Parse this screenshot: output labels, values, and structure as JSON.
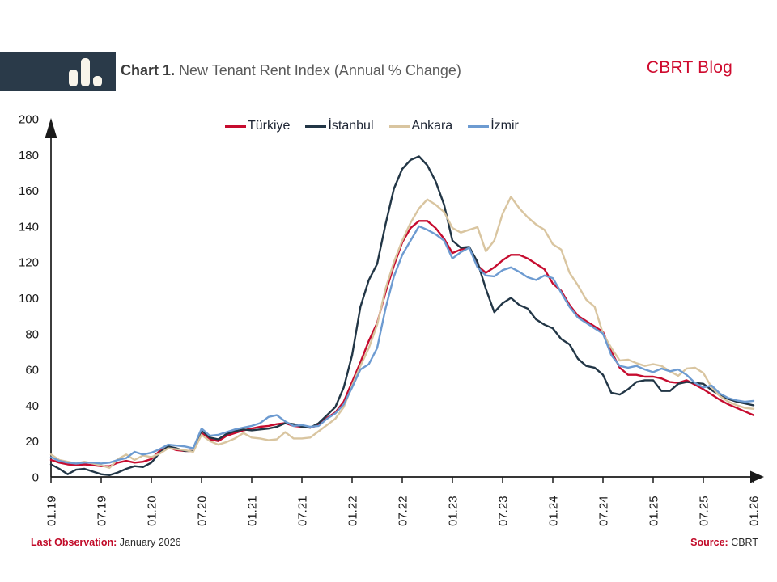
{
  "header": {
    "title_prefix": "Chart 1.",
    "title_rest": "New Tenant Rent Index (Annual % Change)",
    "blog_label": "CBRT Blog",
    "blog_color": "#cf0a2e",
    "logo": {
      "icon": "bar-chart-icon",
      "bg_color": "#2a3a49",
      "bar_color": "#f8f4ea"
    }
  },
  "chart_data": {
    "type": "line",
    "title": "New Tenant Rent Index (Annual % Change)",
    "grid": false,
    "legend_position": "top",
    "axis_color": "#1a1a1a",
    "ylim": [
      0,
      200
    ],
    "y_ticks": [
      0,
      20,
      40,
      60,
      80,
      100,
      120,
      140,
      160,
      180,
      200
    ],
    "x_tick_labels": [
      "01.19",
      "07.19",
      "01.20",
      "07.20",
      "01.21",
      "07.21",
      "01.22",
      "07.22",
      "01.23",
      "07.23",
      "01.24",
      "07.24",
      "01.25",
      "07.25",
      "01.26"
    ],
    "x_unit": "month",
    "points_per_tick": 6,
    "series": [
      {
        "key": "turkiye",
        "name": "Türkiye",
        "color": "#c60c2f",
        "values": [
          9.5,
          8,
          7,
          6.5,
          7,
          6.5,
          6,
          6,
          8,
          9,
          8,
          8.5,
          10,
          14.5,
          16.5,
          15,
          14.5,
          14.5,
          24.5,
          21,
          20,
          23,
          24.5,
          26,
          27,
          28,
          28.5,
          29.5,
          30,
          28.5,
          28,
          27.5,
          29,
          33,
          36,
          42,
          53,
          64,
          76,
          86,
          103,
          118,
          131,
          139,
          143,
          143,
          139,
          133,
          125,
          127,
          128,
          118,
          114,
          117,
          121,
          124,
          124,
          122,
          119,
          116,
          108,
          104,
          96,
          90,
          87,
          84,
          81,
          70,
          61,
          57,
          57,
          56,
          56,
          55,
          53,
          52.5,
          54,
          51.5,
          49,
          46,
          43,
          40.5,
          38.5,
          36.5,
          34.5
        ]
      },
      {
        "key": "istanbul",
        "name": "İstanbul",
        "color": "#223646",
        "values": [
          7,
          4.5,
          1.5,
          4,
          4.5,
          3,
          1.5,
          1,
          2.5,
          4.5,
          6,
          5.5,
          8,
          13.5,
          17,
          16,
          14.5,
          14.5,
          26,
          22,
          21,
          24,
          25.5,
          26.5,
          26,
          26.5,
          27,
          28,
          30,
          29.5,
          28,
          27.5,
          30,
          34.5,
          39,
          50,
          68,
          95,
          110,
          119,
          141,
          161,
          172,
          177,
          179,
          174,
          165,
          152,
          132,
          128,
          128.5,
          120,
          105,
          92,
          97,
          100,
          96,
          94,
          88,
          85,
          83,
          77,
          74,
          66,
          62,
          61,
          57,
          47,
          46,
          49,
          53,
          54,
          54,
          48,
          48,
          52,
          53,
          52.5,
          52,
          48.5,
          45.5,
          43.5,
          42,
          41,
          40
        ]
      },
      {
        "key": "ankara",
        "name": "Ankara",
        "color": "#d9c5a0",
        "values": [
          12.5,
          9.5,
          8.5,
          7.5,
          8.5,
          7.5,
          6.5,
          5,
          10,
          12.5,
          9.5,
          12,
          11,
          13,
          16,
          15.5,
          15,
          14,
          23.5,
          20,
          18,
          19.5,
          21.5,
          24.5,
          22,
          21.5,
          20.5,
          21,
          25,
          21.5,
          21.5,
          22,
          25.5,
          29,
          32.5,
          39,
          51,
          62,
          72,
          85,
          105,
          120,
          132,
          142,
          150,
          155,
          152,
          148,
          139,
          136.5,
          138,
          139.5,
          126,
          132,
          147,
          156.5,
          150,
          145,
          141,
          138,
          130,
          127,
          114,
          107,
          99,
          95,
          80,
          72,
          65,
          65.5,
          63.5,
          62,
          63,
          62,
          59,
          56.5,
          60.5,
          61,
          58,
          50,
          45,
          42,
          40,
          38.5,
          38
        ]
      },
      {
        "key": "izmir",
        "name": "İzmir",
        "color": "#6d9bd1",
        "values": [
          11,
          9,
          8,
          7.5,
          8,
          8,
          7.5,
          8,
          9.5,
          10.5,
          14,
          12.5,
          13.5,
          15.5,
          18,
          17.5,
          17,
          16,
          27,
          23,
          23.5,
          25,
          26.5,
          27.5,
          28.5,
          30,
          33.5,
          34.5,
          31,
          28.5,
          29,
          28,
          28.5,
          32.5,
          35.5,
          40.5,
          50,
          60,
          63,
          72,
          94,
          112,
          124,
          132,
          140,
          138,
          135.5,
          132,
          122,
          125.5,
          128,
          117,
          112.5,
          112,
          115.5,
          117,
          114.5,
          111.5,
          110,
          112.5,
          111,
          103,
          95,
          89,
          86,
          83,
          80,
          68,
          62,
          61,
          62,
          60,
          58.5,
          60.5,
          59,
          60,
          57,
          52.5,
          50,
          51,
          46.5,
          44,
          42.7,
          42,
          42.5
        ]
      }
    ]
  },
  "footer": {
    "last_obs_label": "Last Observation:",
    "last_obs_value": "January 2026",
    "source_label": "Source:",
    "source_value": "CBRT",
    "accent_color": "#c10a28"
  }
}
